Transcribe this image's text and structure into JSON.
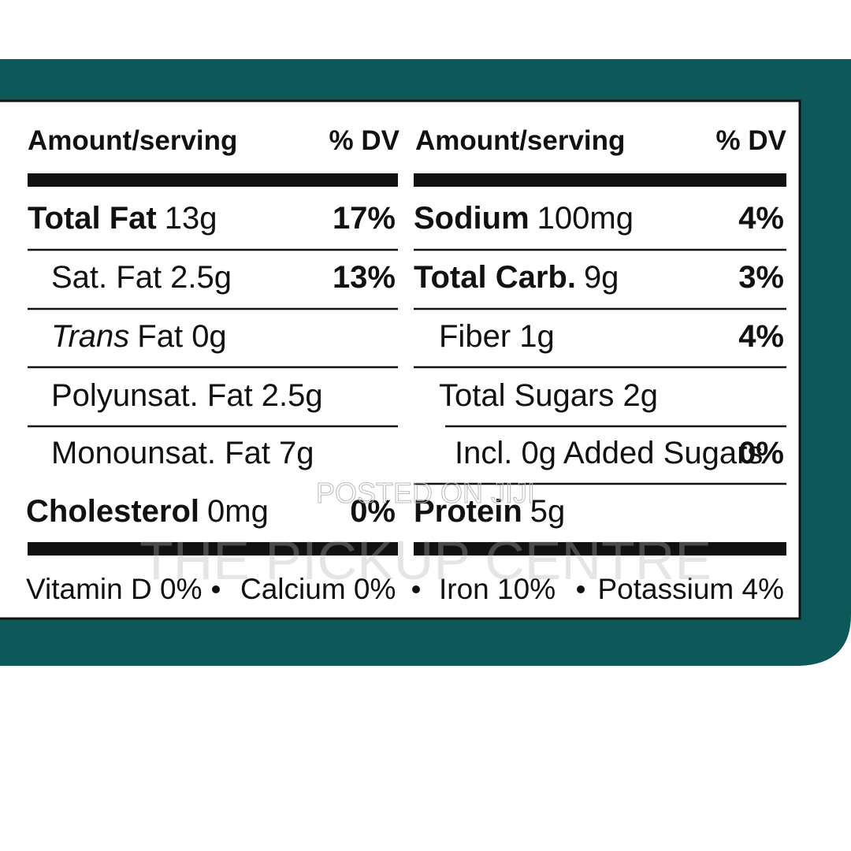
{
  "header": {
    "left": {
      "amount": "Amount/serving",
      "dv": "% DV"
    },
    "right": {
      "amount": "Amount/serving",
      "dv": "% DV"
    }
  },
  "left_rows": [
    {
      "name": "Total Fat",
      "amount": "13g",
      "dv": "17%"
    },
    {
      "name": "Sat. Fat 2.5g",
      "dv": "13%"
    },
    {
      "prefix": "Trans",
      "name": "Fat 0g"
    },
    {
      "name": "Polyunsat. Fat 2.5g"
    },
    {
      "name": "Monounsat. Fat 7g"
    },
    {
      "name": "Cholesterol",
      "amount": "0mg",
      "dv": "0%"
    }
  ],
  "right_rows": [
    {
      "name": "Sodium",
      "amount": "100mg",
      "dv": "4%"
    },
    {
      "name": "Total Carb.",
      "amount": "9g",
      "dv": "3%"
    },
    {
      "name": "Fiber 1g",
      "dv": "4%"
    },
    {
      "name": "Total Sugars 2g"
    },
    {
      "name": "Incl. 0g Added Sugars",
      "dv": "0%"
    },
    {
      "name": "Protein",
      "amount": "5g"
    }
  ],
  "footer": [
    "Vitamin D 0%",
    "Calcium 0%",
    "Iron 10%",
    "Potassium 4%"
  ],
  "watermark": {
    "small": "POSTED ON JIJI",
    "large": "THE PICKUP CENTRE"
  }
}
